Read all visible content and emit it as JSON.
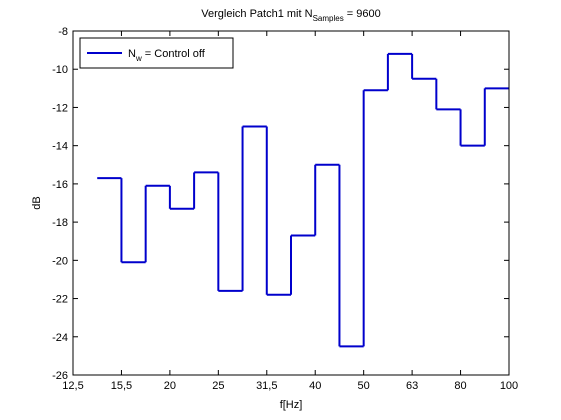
{
  "chart_data": {
    "type": "stairs",
    "title": "Vergleich Patch1 mit N",
    "title_subscript": "Samples",
    "title_suffix": " = 9600",
    "xlabel": "f[Hz]",
    "ylabel": "dB",
    "series": [
      {
        "name": "N",
        "name_subscript": "w",
        "name_suffix": " = Control off",
        "color": "#0000cc",
        "x": [
          0.5,
          1,
          1.5,
          2,
          2.5,
          3,
          3.5,
          4,
          4.5,
          5,
          5.5,
          6,
          6.5,
          7,
          7.5,
          8,
          8.5
        ],
        "values": [
          -15.7,
          -20.1,
          -16.1,
          -17.3,
          -15.4,
          -21.6,
          -13.0,
          -21.8,
          -18.7,
          -15.0,
          -24.5,
          -11.1,
          -9.2,
          -10.5,
          -12.1,
          -14.0,
          -11.0
        ]
      }
    ],
    "xlim": [
      0,
      9
    ],
    "xticks": [
      {
        "value": 0,
        "label": "12,5"
      },
      {
        "value": 1,
        "label": "15,5"
      },
      {
        "value": 2,
        "label": "20"
      },
      {
        "value": 3,
        "label": "25"
      },
      {
        "value": 4,
        "label": "31,5"
      },
      {
        "value": 5,
        "label": "40"
      },
      {
        "value": 6,
        "label": "50"
      },
      {
        "value": 7,
        "label": "63"
      },
      {
        "value": 8,
        "label": "80"
      },
      {
        "value": 9,
        "label": "100"
      }
    ],
    "ylim": [
      -26,
      -8
    ],
    "yticks": [
      -26,
      -24,
      -22,
      -20,
      -18,
      -16,
      -14,
      -12,
      -10,
      -8
    ],
    "grid": false,
    "legend": "upper left"
  }
}
